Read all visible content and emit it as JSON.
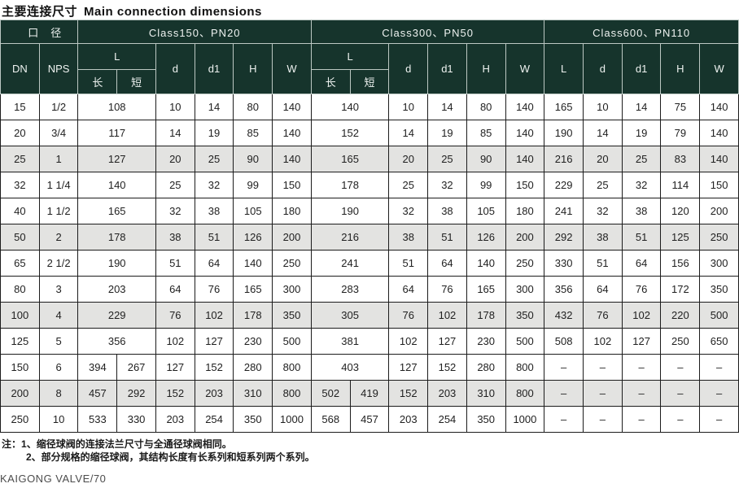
{
  "page": {
    "title_zh": "主要连接尺寸",
    "title_en": "Main connection dimensions",
    "footer_brand": "KAIGONG VALVE/70"
  },
  "colors": {
    "header_bg": "#16342c",
    "header_text": "#eef2f0",
    "shaded_row_bg": "#e3e3e1",
    "body_border": "#1c1c1c"
  },
  "notes": {
    "prefix": "注：",
    "items": [
      "1、缩径球阀的连接法兰尺寸与全通径球阀相同。",
      "2、部分规格的缩径球阀，其结构长度有长系列和短系列两个系列。"
    ]
  },
  "table": {
    "headers": {
      "caliber": "口　径",
      "class150": "Class150、PN20",
      "class300": "Class300、PN50",
      "class600": "Class600、PN110",
      "dn": "DN",
      "nps": "NPS",
      "l": "L",
      "long": "长",
      "short": "短",
      "d": "d",
      "d1": "d1",
      "h": "H",
      "w": "W"
    },
    "rows": [
      {
        "shaded": false,
        "cells": [
          {
            "v": "15"
          },
          {
            "v": "1/2"
          },
          {
            "v": "108",
            "span": 2
          },
          {
            "v": "10"
          },
          {
            "v": "14"
          },
          {
            "v": "80"
          },
          {
            "v": "140"
          },
          {
            "v": "140",
            "span": 2
          },
          {
            "v": "10"
          },
          {
            "v": "14"
          },
          {
            "v": "80"
          },
          {
            "v": "140"
          },
          {
            "v": "165"
          },
          {
            "v": "10"
          },
          {
            "v": "14"
          },
          {
            "v": "75"
          },
          {
            "v": "140"
          }
        ]
      },
      {
        "shaded": false,
        "cells": [
          {
            "v": "20"
          },
          {
            "v": "3/4"
          },
          {
            "v": "117",
            "span": 2
          },
          {
            "v": "14"
          },
          {
            "v": "19"
          },
          {
            "v": "85"
          },
          {
            "v": "140"
          },
          {
            "v": "152",
            "span": 2
          },
          {
            "v": "14"
          },
          {
            "v": "19"
          },
          {
            "v": "85"
          },
          {
            "v": "140"
          },
          {
            "v": "190"
          },
          {
            "v": "14"
          },
          {
            "v": "19"
          },
          {
            "v": "79"
          },
          {
            "v": "140"
          }
        ]
      },
      {
        "shaded": true,
        "cells": [
          {
            "v": "25"
          },
          {
            "v": "1"
          },
          {
            "v": "127",
            "span": 2
          },
          {
            "v": "20"
          },
          {
            "v": "25"
          },
          {
            "v": "90"
          },
          {
            "v": "140"
          },
          {
            "v": "165",
            "span": 2
          },
          {
            "v": "20"
          },
          {
            "v": "25"
          },
          {
            "v": "90"
          },
          {
            "v": "140"
          },
          {
            "v": "216"
          },
          {
            "v": "20"
          },
          {
            "v": "25"
          },
          {
            "v": "83"
          },
          {
            "v": "140"
          }
        ]
      },
      {
        "shaded": false,
        "cells": [
          {
            "v": "32"
          },
          {
            "v": "1 1/4"
          },
          {
            "v": "140",
            "span": 2
          },
          {
            "v": "25"
          },
          {
            "v": "32"
          },
          {
            "v": "99"
          },
          {
            "v": "150"
          },
          {
            "v": "178",
            "span": 2
          },
          {
            "v": "25"
          },
          {
            "v": "32"
          },
          {
            "v": "99"
          },
          {
            "v": "150"
          },
          {
            "v": "229"
          },
          {
            "v": "25"
          },
          {
            "v": "32"
          },
          {
            "v": "114"
          },
          {
            "v": "150"
          }
        ]
      },
      {
        "shaded": false,
        "cells": [
          {
            "v": "40"
          },
          {
            "v": "1 1/2"
          },
          {
            "v": "165",
            "span": 2
          },
          {
            "v": "32"
          },
          {
            "v": "38"
          },
          {
            "v": "105"
          },
          {
            "v": "180"
          },
          {
            "v": "190",
            "span": 2
          },
          {
            "v": "32"
          },
          {
            "v": "38"
          },
          {
            "v": "105"
          },
          {
            "v": "180"
          },
          {
            "v": "241"
          },
          {
            "v": "32"
          },
          {
            "v": "38"
          },
          {
            "v": "120"
          },
          {
            "v": "200"
          }
        ]
      },
      {
        "shaded": true,
        "cells": [
          {
            "v": "50"
          },
          {
            "v": "2"
          },
          {
            "v": "178",
            "span": 2
          },
          {
            "v": "38"
          },
          {
            "v": "51"
          },
          {
            "v": "126"
          },
          {
            "v": "200"
          },
          {
            "v": "216",
            "span": 2
          },
          {
            "v": "38"
          },
          {
            "v": "51"
          },
          {
            "v": "126"
          },
          {
            "v": "200"
          },
          {
            "v": "292"
          },
          {
            "v": "38"
          },
          {
            "v": "51"
          },
          {
            "v": "125"
          },
          {
            "v": "250"
          }
        ]
      },
      {
        "shaded": false,
        "cells": [
          {
            "v": "65"
          },
          {
            "v": "2 1/2"
          },
          {
            "v": "190",
            "span": 2
          },
          {
            "v": "51"
          },
          {
            "v": "64"
          },
          {
            "v": "140"
          },
          {
            "v": "250"
          },
          {
            "v": "241",
            "span": 2
          },
          {
            "v": "51"
          },
          {
            "v": "64"
          },
          {
            "v": "140"
          },
          {
            "v": "250"
          },
          {
            "v": "330"
          },
          {
            "v": "51"
          },
          {
            "v": "64"
          },
          {
            "v": "156"
          },
          {
            "v": "300"
          }
        ]
      },
      {
        "shaded": false,
        "cells": [
          {
            "v": "80"
          },
          {
            "v": "3"
          },
          {
            "v": "203",
            "span": 2
          },
          {
            "v": "64"
          },
          {
            "v": "76"
          },
          {
            "v": "165"
          },
          {
            "v": "300"
          },
          {
            "v": "283",
            "span": 2
          },
          {
            "v": "64"
          },
          {
            "v": "76"
          },
          {
            "v": "165"
          },
          {
            "v": "300"
          },
          {
            "v": "356"
          },
          {
            "v": "64"
          },
          {
            "v": "76"
          },
          {
            "v": "172"
          },
          {
            "v": "350"
          }
        ]
      },
      {
        "shaded": true,
        "cells": [
          {
            "v": "100"
          },
          {
            "v": "4"
          },
          {
            "v": "229",
            "span": 2
          },
          {
            "v": "76"
          },
          {
            "v": "102"
          },
          {
            "v": "178"
          },
          {
            "v": "350"
          },
          {
            "v": "305",
            "span": 2
          },
          {
            "v": "76"
          },
          {
            "v": "102"
          },
          {
            "v": "178"
          },
          {
            "v": "350"
          },
          {
            "v": "432"
          },
          {
            "v": "76"
          },
          {
            "v": "102"
          },
          {
            "v": "220"
          },
          {
            "v": "500"
          }
        ]
      },
      {
        "shaded": false,
        "cells": [
          {
            "v": "125"
          },
          {
            "v": "5"
          },
          {
            "v": "356",
            "span": 2
          },
          {
            "v": "102"
          },
          {
            "v": "127"
          },
          {
            "v": "230"
          },
          {
            "v": "500"
          },
          {
            "v": "381",
            "span": 2
          },
          {
            "v": "102"
          },
          {
            "v": "127"
          },
          {
            "v": "230"
          },
          {
            "v": "500"
          },
          {
            "v": "508"
          },
          {
            "v": "102"
          },
          {
            "v": "127"
          },
          {
            "v": "250"
          },
          {
            "v": "650"
          }
        ]
      },
      {
        "shaded": false,
        "cells": [
          {
            "v": "150"
          },
          {
            "v": "6"
          },
          {
            "v": "394"
          },
          {
            "v": "267"
          },
          {
            "v": "127"
          },
          {
            "v": "152"
          },
          {
            "v": "280"
          },
          {
            "v": "800"
          },
          {
            "v": "403",
            "span": 2
          },
          {
            "v": "127"
          },
          {
            "v": "152"
          },
          {
            "v": "280"
          },
          {
            "v": "800"
          },
          {
            "v": "–"
          },
          {
            "v": "–"
          },
          {
            "v": "–"
          },
          {
            "v": "–"
          },
          {
            "v": "–"
          }
        ]
      },
      {
        "shaded": true,
        "cells": [
          {
            "v": "200"
          },
          {
            "v": "8"
          },
          {
            "v": "457"
          },
          {
            "v": "292"
          },
          {
            "v": "152"
          },
          {
            "v": "203"
          },
          {
            "v": "310"
          },
          {
            "v": "800"
          },
          {
            "v": "502"
          },
          {
            "v": "419"
          },
          {
            "v": "152"
          },
          {
            "v": "203"
          },
          {
            "v": "310"
          },
          {
            "v": "800"
          },
          {
            "v": "–"
          },
          {
            "v": "–"
          },
          {
            "v": "–"
          },
          {
            "v": "–"
          },
          {
            "v": "–"
          }
        ]
      },
      {
        "shaded": false,
        "cells": [
          {
            "v": "250"
          },
          {
            "v": "10"
          },
          {
            "v": "533"
          },
          {
            "v": "330"
          },
          {
            "v": "203"
          },
          {
            "v": "254"
          },
          {
            "v": "350"
          },
          {
            "v": "1000"
          },
          {
            "v": "568"
          },
          {
            "v": "457"
          },
          {
            "v": "203"
          },
          {
            "v": "254"
          },
          {
            "v": "350"
          },
          {
            "v": "1000"
          },
          {
            "v": "–"
          },
          {
            "v": "–"
          },
          {
            "v": "–"
          },
          {
            "v": "–"
          },
          {
            "v": "–"
          }
        ]
      }
    ]
  }
}
